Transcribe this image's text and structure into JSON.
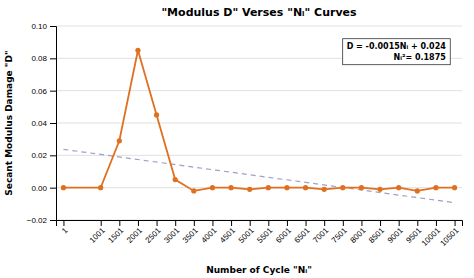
{
  "chart_data": {
    "type": "line",
    "title": "\"Modulus D\" Verses \"Nᵢ\" Curves",
    "xlabel": "Number of Cycle \"Nᵢ\"",
    "ylabel": "Secant Modulus Damage \"D\"",
    "x": [
      1,
      1001,
      1501,
      2001,
      2501,
      3001,
      3501,
      4001,
      4501,
      5001,
      5501,
      6001,
      6501,
      7001,
      7501,
      8001,
      8501,
      9001,
      9501,
      10001,
      10501
    ],
    "series": [
      {
        "values": [
          0.0,
          0.0,
          0.029,
          0.085,
          0.045,
          0.005,
          -0.002,
          0.0,
          0.0,
          -0.001,
          0.0,
          0.0,
          0.0,
          -0.001,
          0.0,
          0.0,
          -0.001,
          0.0,
          -0.002,
          0.0,
          0.0
        ],
        "color": "#E07020",
        "marker": "circle",
        "line_style": "solid"
      },
      {
        "x": [
          1,
          10501
        ],
        "values": [
          0.0237,
          -0.0093
        ],
        "color": "#A0A0C0",
        "line_style": "dashed"
      }
    ],
    "xlim": [
      -199,
      10701
    ],
    "xticks": [
      1,
      1001,
      1501,
      2001,
      2501,
      3001,
      3501,
      4001,
      4501,
      5001,
      5501,
      6001,
      6501,
      7001,
      7501,
      8001,
      8501,
      9001,
      9501,
      10001,
      10501
    ],
    "ylim": [
      -0.02,
      0.1
    ],
    "yticks": [
      {
        "value": -0.02,
        "label": "−0.02"
      },
      {
        "value": 0.0,
        "label": "0.00"
      },
      {
        "value": 0.02,
        "label": "0.02"
      },
      {
        "value": 0.04,
        "label": "0.04"
      },
      {
        "value": 0.06,
        "label": "0.06"
      },
      {
        "value": 0.08,
        "label": "0.08"
      },
      {
        "value": 0.1,
        "label": "0.10"
      }
    ],
    "grid": true,
    "annotations": [
      "D = -0.0015Nᵢ + 0.024",
      "Nᵢ²= 0.1875"
    ]
  }
}
